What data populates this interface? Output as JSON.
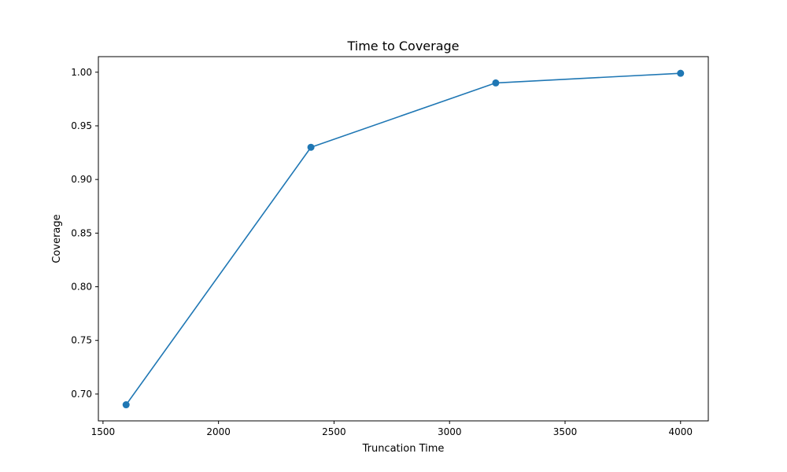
{
  "chart_data": {
    "type": "line",
    "title": "Time to Coverage",
    "xlabel": "Truncation Time",
    "ylabel": "Coverage",
    "x": [
      1600,
      2400,
      3200,
      4000
    ],
    "series": [
      {
        "values": [
          0.69,
          0.93,
          0.99,
          0.999
        ],
        "color": "#1f77b4",
        "marker": "circle"
      }
    ],
    "xlim": [
      1480,
      4120
    ],
    "ylim": [
      0.675,
      1.0145
    ],
    "xticks": [
      1500,
      2000,
      2500,
      3000,
      3500,
      4000
    ],
    "xtick_labels": [
      "1500",
      "2000",
      "2500",
      "3000",
      "3500",
      "4000"
    ],
    "yticks": [
      0.7,
      0.75,
      0.8,
      0.85,
      0.9,
      0.95,
      1.0
    ],
    "ytick_labels": [
      "0.70",
      "0.75",
      "0.80",
      "0.85",
      "0.90",
      "0.95",
      "1.00"
    ],
    "grid": false,
    "legend": "none"
  }
}
